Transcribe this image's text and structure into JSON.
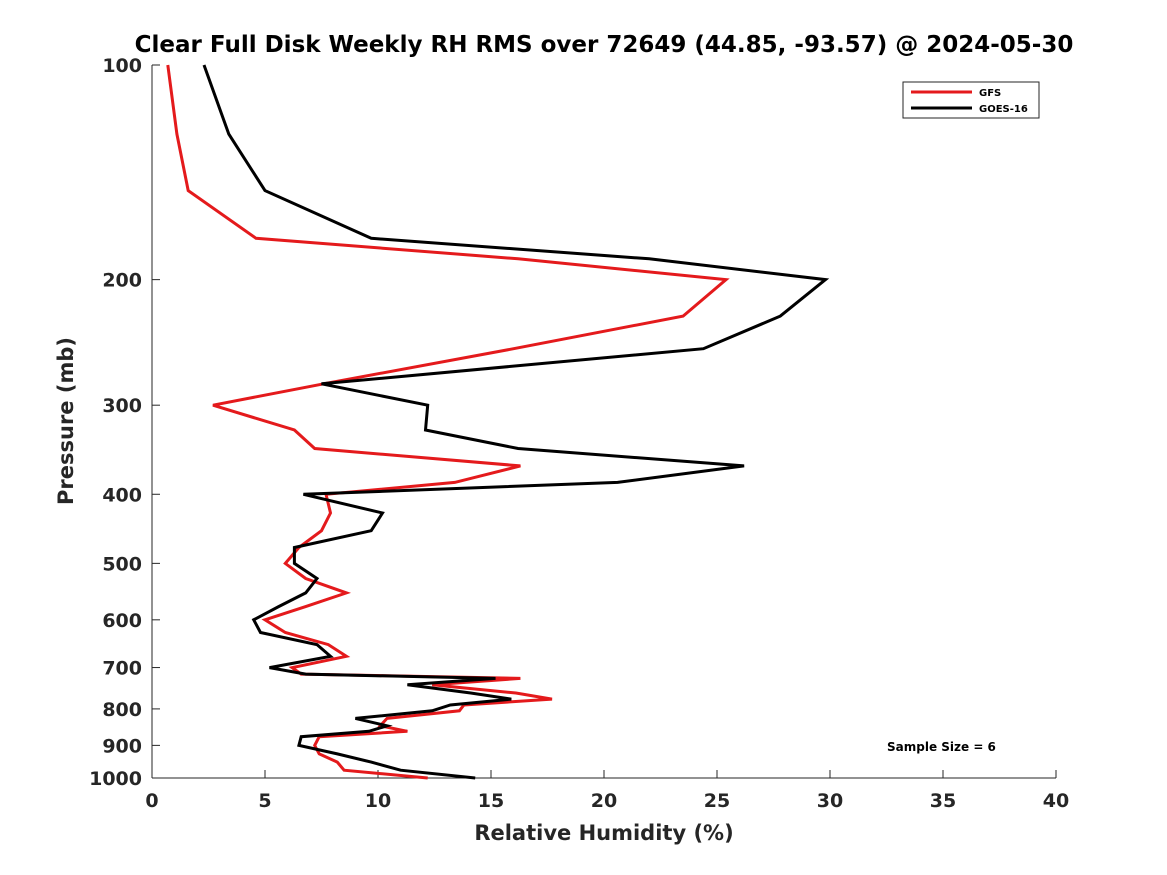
{
  "chart_data": {
    "type": "line",
    "title": "Clear Full Disk Weekly RH RMS over 72649 (44.85, -93.57) @ 2024-05-30",
    "xlabel": "Relative Humidity (%)",
    "ylabel": "Pressure (mb)",
    "xlim": [
      0,
      40
    ],
    "ylim": [
      100,
      1000
    ],
    "yscale": "log",
    "yreversed": true,
    "x_ticks": [
      0,
      5,
      10,
      15,
      20,
      25,
      30,
      35,
      40
    ],
    "y_ticks": [
      100,
      200,
      300,
      400,
      500,
      600,
      700,
      800,
      900,
      1000
    ],
    "grid": false,
    "legend_position": "top-right",
    "annotation": "Sample Size = 6",
    "series": [
      {
        "name": "GFS",
        "color": "#e41a1c",
        "points": [
          [
            0.7,
            100
          ],
          [
            1.1,
            125
          ],
          [
            1.6,
            150
          ],
          [
            4.6,
            175
          ],
          [
            16.2,
            187
          ],
          [
            25.4,
            200
          ],
          [
            23.5,
            225
          ],
          [
            16.0,
            250
          ],
          [
            7.6,
            280
          ],
          [
            2.7,
            300
          ],
          [
            6.3,
            325
          ],
          [
            7.2,
            345
          ],
          [
            16.3,
            365
          ],
          [
            13.4,
            385
          ],
          [
            7.7,
            400
          ],
          [
            7.9,
            425
          ],
          [
            7.5,
            450
          ],
          [
            6.5,
            475
          ],
          [
            5.9,
            500
          ],
          [
            6.8,
            525
          ],
          [
            8.6,
            550
          ],
          [
            6.8,
            575
          ],
          [
            5.0,
            600
          ],
          [
            5.9,
            625
          ],
          [
            7.8,
            650
          ],
          [
            8.6,
            675
          ],
          [
            6.2,
            700
          ],
          [
            6.6,
            715
          ],
          [
            16.3,
            725
          ],
          [
            12.4,
            740
          ],
          [
            16.1,
            760
          ],
          [
            17.7,
            775
          ],
          [
            13.8,
            790
          ],
          [
            13.6,
            805
          ],
          [
            10.4,
            825
          ],
          [
            10.1,
            845
          ],
          [
            11.3,
            860
          ],
          [
            7.4,
            875
          ],
          [
            7.2,
            900
          ],
          [
            7.4,
            925
          ],
          [
            8.2,
            950
          ],
          [
            8.5,
            975
          ],
          [
            12.2,
            1000
          ]
        ]
      },
      {
        "name": "GOES-16",
        "color": "#000000",
        "points": [
          [
            2.3,
            100
          ],
          [
            3.4,
            125
          ],
          [
            5.0,
            150
          ],
          [
            9.7,
            175
          ],
          [
            22.0,
            187
          ],
          [
            29.8,
            200
          ],
          [
            27.8,
            225
          ],
          [
            24.4,
            250
          ],
          [
            7.5,
            280
          ],
          [
            12.2,
            300
          ],
          [
            12.1,
            325
          ],
          [
            16.2,
            345
          ],
          [
            26.2,
            365
          ],
          [
            20.6,
            385
          ],
          [
            6.7,
            400
          ],
          [
            10.2,
            425
          ],
          [
            9.7,
            450
          ],
          [
            6.3,
            475
          ],
          [
            6.3,
            500
          ],
          [
            7.3,
            525
          ],
          [
            6.8,
            550
          ],
          [
            5.6,
            575
          ],
          [
            4.5,
            600
          ],
          [
            4.8,
            625
          ],
          [
            7.3,
            650
          ],
          [
            7.9,
            675
          ],
          [
            5.2,
            700
          ],
          [
            6.8,
            715
          ],
          [
            15.2,
            725
          ],
          [
            11.3,
            740
          ],
          [
            14.1,
            760
          ],
          [
            15.9,
            775
          ],
          [
            13.2,
            790
          ],
          [
            12.4,
            805
          ],
          [
            9.0,
            825
          ],
          [
            10.4,
            845
          ],
          [
            9.6,
            860
          ],
          [
            6.6,
            875
          ],
          [
            6.5,
            900
          ],
          [
            8.2,
            925
          ],
          [
            9.7,
            950
          ],
          [
            11.0,
            975
          ],
          [
            14.3,
            1000
          ]
        ]
      }
    ]
  }
}
